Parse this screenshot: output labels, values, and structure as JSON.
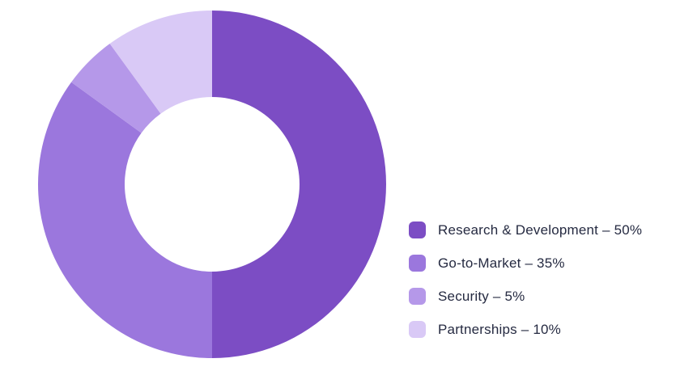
{
  "page": {
    "background": "#FFFFFF",
    "text_color": "#252A41"
  },
  "chart_data": {
    "type": "pie",
    "variant": "donut",
    "title": "",
    "unit": "%",
    "start_angle_deg": -90,
    "direction": "clockwise",
    "inner_radius_ratio": 0.5,
    "legend_position": "right",
    "segments": [
      {
        "label": "Research & Development",
        "value": 50,
        "color": "#7C4DC4",
        "display": "Research & Development – 50%"
      },
      {
        "label": "Go-to-Market",
        "value": 35,
        "color": "#9B77DD",
        "display": "Go-to-Market – 35%"
      },
      {
        "label": "Security",
        "value": 5,
        "color": "#B598E9",
        "display": "Security – 5%"
      },
      {
        "label": "Partnerships",
        "value": 10,
        "color": "#D9C9F6",
        "display": "Partnerships – 10%"
      }
    ]
  }
}
